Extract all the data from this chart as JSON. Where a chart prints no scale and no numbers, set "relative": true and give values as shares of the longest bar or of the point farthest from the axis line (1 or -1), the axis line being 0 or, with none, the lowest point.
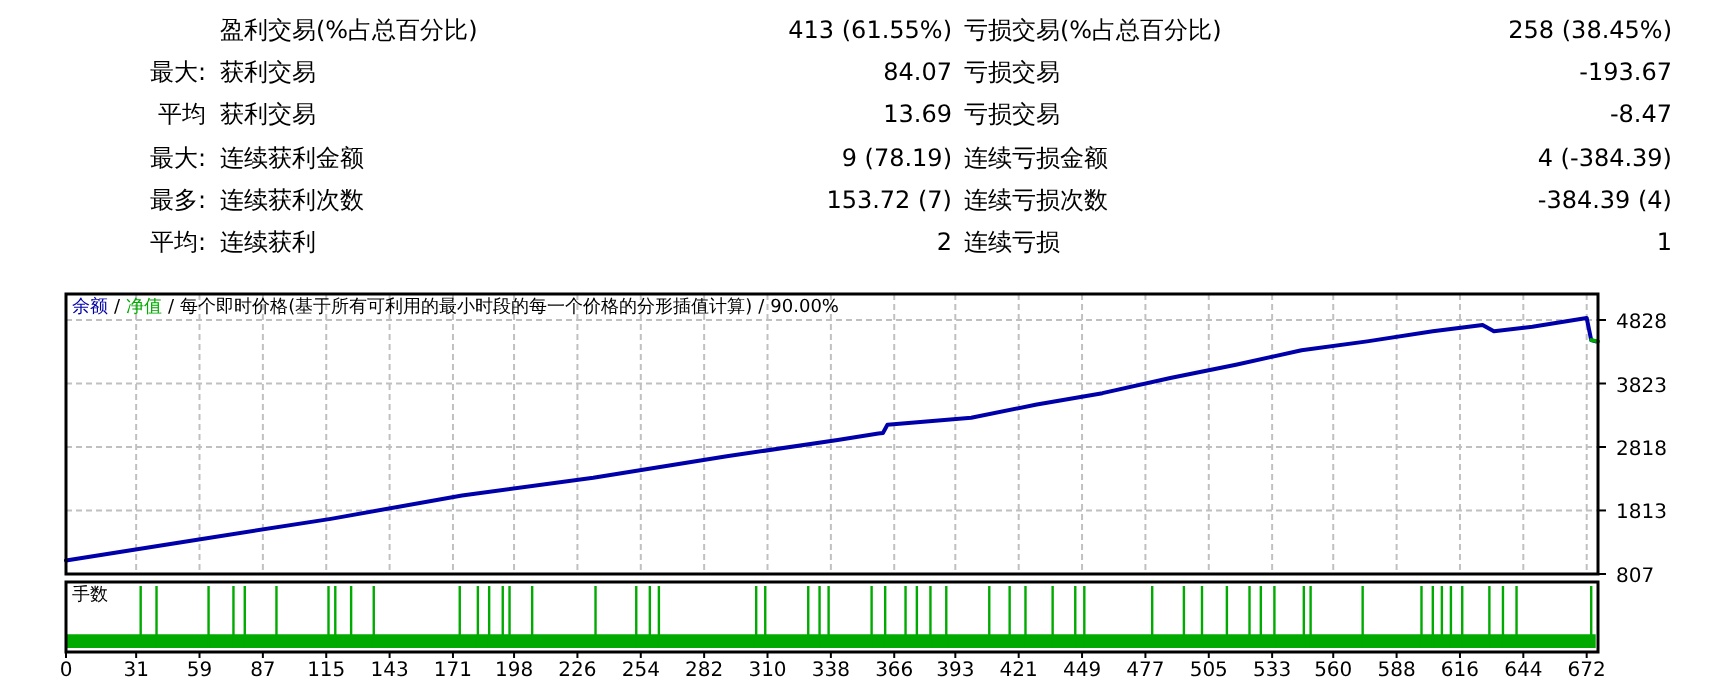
{
  "chart_data": [
    {
      "type": "other",
      "annotations": [
        "盈利交易(%占总百分比)",
        "413 (61.55%)",
        "亏损交易(%占总百分比)",
        "258 (38.45%)",
        "最大:",
        "获利交易",
        "84.07",
        "亏损交易",
        "-193.67",
        "平均",
        "获利交易",
        "13.69",
        "亏损交易",
        "-8.47",
        "最大:",
        "连续获利金额",
        "9 (78.19)",
        "连续亏损金额",
        "4 (-384.39)",
        "最多:",
        "连续获利次数",
        "153.72 (7)",
        "连续亏损次数",
        "-384.39 (4)",
        "平均:",
        "连续获利",
        "2",
        "连续亏损",
        "1"
      ]
    },
    {
      "type": "line",
      "legend": "top left",
      "grid": true,
      "annotations": [
        "/",
        "/",
        "每个即时价格(基于所有可利用的最小时段的每一个价格的分形插值计算)",
        "/",
        "90.00%"
      ],
      "xlim": [
        0,
        677
      ],
      "xticks": [
        0,
        31,
        59,
        87,
        115,
        143,
        171,
        198,
        226,
        254,
        282,
        310,
        338,
        366,
        393,
        421,
        449,
        477,
        505,
        533,
        560,
        588,
        616,
        644,
        672
      ],
      "ylim": [
        807,
        5240
      ],
      "yticks": [
        807,
        1813,
        2818,
        3823,
        4828
      ],
      "tick_labels": "y",
      "series": [
        {
          "name": "余额",
          "color": "#0000aa",
          "x": [
            0,
            58,
            117,
            175,
            233,
            292,
            341,
            359,
            361,
            363,
            400,
            429,
            458,
            488,
            517,
            546,
            575,
            604,
            626,
            631,
            648,
            672,
            674,
            676
          ],
          "values": [
            1020,
            1350,
            1680,
            2050,
            2330,
            2670,
            2930,
            3030,
            3040,
            3170,
            3280,
            3490,
            3670,
            3910,
            4120,
            4350,
            4490,
            4650,
            4750,
            4650,
            4720,
            4860,
            4510,
            4490
          ]
        },
        {
          "name": "净值",
          "color": "#00aa00",
          "x": [
            674,
            677
          ],
          "values": [
            4510,
            4490
          ]
        }
      ]
    },
    {
      "type": "bar",
      "title": "手数",
      "relative": true,
      "xlim": [
        0,
        677
      ],
      "xticks": [
        0,
        31,
        59,
        87,
        115,
        143,
        171,
        198,
        226,
        254,
        282,
        310,
        338,
        366,
        393,
        421,
        449,
        477,
        505,
        533,
        560,
        588,
        616,
        644,
        672
      ],
      "tick_labels": "x",
      "series": [
        {
          "type": "area",
          "color": "#00aa00",
          "x": [
            0,
            676
          ],
          "values": [
            0.22,
            0.22
          ]
        },
        {
          "type": "bar",
          "color": "#00aa00",
          "x": [
            33,
            40,
            63,
            74,
            79,
            93,
            116,
            119,
            126,
            136,
            174,
            182,
            187,
            193,
            196,
            206,
            234,
            252,
            258,
            262,
            305,
            309,
            328,
            333,
            337,
            356,
            362,
            371,
            376,
            382,
            389,
            408,
            417,
            424,
            436,
            446,
            450,
            480,
            494,
            502,
            513,
            523,
            528,
            534,
            547,
            550,
            573,
            599,
            604,
            608,
            612,
            617,
            629,
            635,
            641,
            674
          ],
          "values": [
            1,
            1,
            1,
            1,
            1,
            1,
            1,
            1,
            1,
            1,
            1,
            1,
            1,
            1,
            1,
            1,
            1,
            1,
            1,
            1,
            1,
            1,
            1,
            1,
            1,
            1,
            1,
            1,
            1,
            1,
            1,
            1,
            1,
            1,
            1,
            1,
            1,
            1,
            1,
            1,
            1,
            1,
            1,
            1,
            1,
            1,
            1,
            1,
            1,
            1,
            1,
            1,
            1,
            1,
            1,
            1
          ]
        }
      ]
    }
  ]
}
